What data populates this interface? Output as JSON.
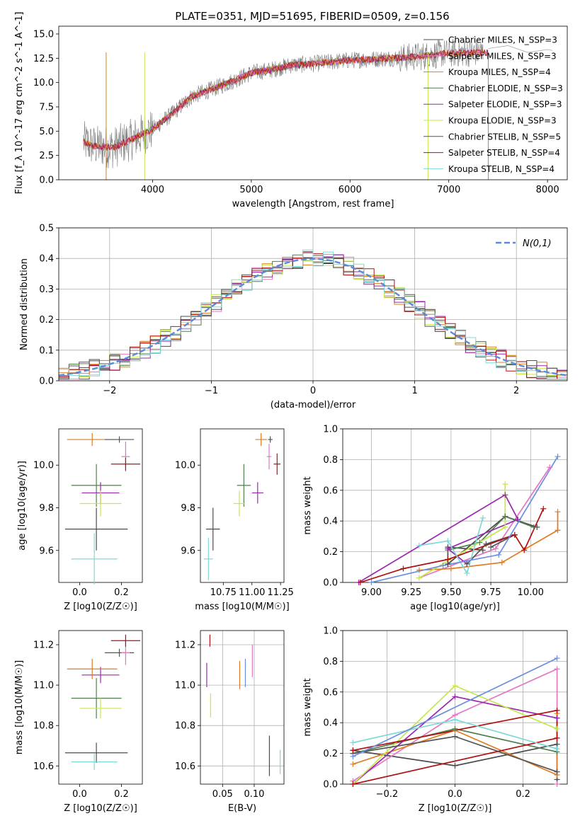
{
  "figure_title": "PLATE=0351, MJD=51695, FIBERID=0509, z=0.156",
  "colors": {
    "Chabrier MILES": "#4b4b4b",
    "Salpeter MILES": "#e377c2",
    "Kroupa MILES": "#e07b1f",
    "Chabrier ELODIE": "#4f7f4f",
    "Salpeter ELODIE": "#9b27b0",
    "Kroupa ELODIE": "#c5e84a",
    "Chabrier STELIB": "#555555",
    "Salpeter STELIB": "#b01010",
    "Kroupa STELIB": "#7fd8d8",
    "normal": "#5a8ad8",
    "blue": "#6a8ee0"
  },
  "chart_data": [
    {
      "id": "spectrum",
      "type": "line",
      "title": "PLATE=0351, MJD=51695, FIBERID=0509, z=0.156",
      "xlabel": "wavelength [Angstrom, rest frame]",
      "ylabel": "Flux [f_λ 10^-17 erg cm^-2 s^-1 A^-1]",
      "xlim": [
        3050,
        8200
      ],
      "ylim": [
        0,
        15.8
      ],
      "xticks": [
        4000,
        5000,
        6000,
        7000,
        8000
      ],
      "yticks": [
        0.0,
        2.5,
        5.0,
        7.5,
        10.0,
        12.5,
        15.0
      ],
      "grid": false,
      "legend_position": "top-right",
      "legend": [
        {
          "label": "Chabrier MILES, N_SSP=3",
          "color_key": "Chabrier MILES"
        },
        {
          "label": "Salpeter MILES, N_SSP=3",
          "color_key": "Salpeter MILES"
        },
        {
          "label": "Kroupa MILES, N_SSP=4",
          "color_key": "Kroupa MILES"
        },
        {
          "label": "Chabrier ELODIE, N_SSP=3",
          "color_key": "Chabrier ELODIE"
        },
        {
          "label": "Salpeter ELODIE, N_SSP=3",
          "color_key": "Salpeter ELODIE"
        },
        {
          "label": "Kroupa ELODIE, N_SSP=3",
          "color_key": "Kroupa ELODIE"
        },
        {
          "label": "Chabrier STELIB, N_SSP=5",
          "color_key": "Chabrier STELIB"
        },
        {
          "label": "Salpeter STELIB, N_SSP=4",
          "color_key": "Salpeter STELIB"
        },
        {
          "label": "Kroupa STELIB, N_SSP=4",
          "color_key": "Kroupa STELIB"
        }
      ],
      "continuum": [
        [
          3300,
          3.9
        ],
        [
          3400,
          3.5
        ],
        [
          3600,
          3.3
        ],
        [
          3800,
          4.2
        ],
        [
          4000,
          5.2
        ],
        [
          4200,
          6.8
        ],
        [
          4400,
          8.6
        ],
        [
          4600,
          9.3
        ],
        [
          4800,
          10.1
        ],
        [
          5000,
          11.0
        ],
        [
          5200,
          11.3
        ],
        [
          5400,
          11.8
        ],
        [
          5600,
          11.9
        ],
        [
          5800,
          12.1
        ],
        [
          6000,
          12.3
        ],
        [
          6200,
          12.4
        ],
        [
          6400,
          12.5
        ],
        [
          6600,
          12.6
        ],
        [
          6800,
          12.8
        ],
        [
          6950,
          13.0
        ],
        [
          7300,
          13.1
        ]
      ],
      "model_ends": {
        "MILES": 7400,
        "ELODIE": 6800,
        "STELIB": 7400
      },
      "red_extension": [
        [
          7400,
          13.5
        ],
        [
          7600,
          13.8
        ],
        [
          7800,
          13.1
        ],
        [
          8000,
          13.4
        ],
        [
          8050,
          13.3
        ]
      ]
    },
    {
      "id": "residual_hist",
      "type": "line",
      "title": "",
      "xlabel": "(data-model)/error",
      "ylabel": "Normed distribution",
      "xlim": [
        -2.5,
        2.5
      ],
      "ylim": [
        0,
        0.5
      ],
      "xticks": [
        -2,
        -1,
        0,
        1,
        2
      ],
      "yticks": [
        0.0,
        0.1,
        0.2,
        0.3,
        0.4,
        0.5
      ],
      "grid": true,
      "legend_position": "top-right",
      "legend": [
        {
          "label": "N(0,1)",
          "style": "dashed",
          "color_key": "normal"
        }
      ],
      "bin_edges_start": -2.5,
      "bin_width": 0.1,
      "curve": "standard normal density, sigma = 1"
    },
    {
      "id": "age_vs_Z",
      "type": "scatter",
      "xlabel": "Z [log10(Z/Z☉)]",
      "ylabel": "age [log10(age/yr)]",
      "xlim": [
        -0.1,
        0.3
      ],
      "ylim": [
        9.45,
        10.17
      ],
      "xticks": [
        0.0,
        0.2
      ],
      "yticks": [
        9.6,
        9.8,
        10.0
      ],
      "grid": false,
      "points": [
        {
          "model": "Chabrier MILES",
          "x": 0.08,
          "xerr": 0.15,
          "y": 9.7,
          "yerr": 0.1
        },
        {
          "model": "Kroupa STELIB",
          "x": 0.07,
          "xerr": 0.11,
          "y": 9.56,
          "yerr": 0.12
        },
        {
          "model": "Chabrier ELODIE",
          "x": 0.08,
          "xerr": 0.12,
          "y": 9.905,
          "yerr": 0.1
        },
        {
          "model": "Salpeter ELODIE",
          "x": 0.1,
          "xerr": 0.09,
          "y": 9.87,
          "yerr": 0.05
        },
        {
          "model": "Kroupa ELODIE",
          "x": 0.1,
          "xerr": 0.1,
          "y": 9.82,
          "yerr": 0.06
        },
        {
          "model": "Kroupa MILES",
          "x": 0.06,
          "xerr": 0.12,
          "y": 10.12,
          "yerr": 0.03
        },
        {
          "model": "Chabrier STELIB",
          "x": 0.19,
          "xerr": 0.07,
          "y": 10.12,
          "yerr": 0.015
        },
        {
          "model": "Salpeter MILES",
          "x": 0.22,
          "xerr": 0.02,
          "y": 10.04,
          "yerr": 0.07
        },
        {
          "model": "Salpeter STELIB",
          "x": 0.22,
          "xerr": 0.07,
          "y": 10.005,
          "yerr": 0.03
        }
      ]
    },
    {
      "id": "age_vs_mass",
      "type": "scatter",
      "xlabel": "mass [log10(M/M☉)]",
      "ylabel": "",
      "xlim": [
        10.55,
        11.28
      ],
      "ylim": [
        9.45,
        10.17
      ],
      "xticks": [
        10.75,
        11.0,
        11.25
      ],
      "yticks": [
        9.6,
        9.8,
        10.0
      ],
      "grid": false,
      "points": [
        {
          "model": "Chabrier MILES",
          "x": 10.66,
          "xerr": 0.06,
          "y": 9.7,
          "yerr": 0.1
        },
        {
          "model": "Kroupa STELIB",
          "x": 10.62,
          "xerr": 0.04,
          "y": 9.56,
          "yerr": 0.1
        },
        {
          "model": "Chabrier ELODIE",
          "x": 10.93,
          "xerr": 0.06,
          "y": 9.905,
          "yerr": 0.1
        },
        {
          "model": "Kroupa ELODIE",
          "x": 10.89,
          "xerr": 0.05,
          "y": 9.82,
          "yerr": 0.06
        },
        {
          "model": "Salpeter ELODIE",
          "x": 11.05,
          "xerr": 0.05,
          "y": 9.87,
          "yerr": 0.05
        },
        {
          "model": "Kroupa MILES",
          "x": 11.08,
          "xerr": 0.05,
          "y": 10.12,
          "yerr": 0.03
        },
        {
          "model": "Chabrier STELIB",
          "x": 11.16,
          "xerr": 0.02,
          "y": 10.12,
          "yerr": 0.015
        },
        {
          "model": "Salpeter MILES",
          "x": 11.15,
          "xerr": 0.02,
          "y": 10.04,
          "yerr": 0.06
        },
        {
          "model": "Salpeter STELIB",
          "x": 11.22,
          "xerr": 0.03,
          "y": 10.005,
          "yerr": 0.05
        }
      ]
    },
    {
      "id": "mass_weight_vs_age",
      "type": "line",
      "xlabel": "age [log10(age/yr)]",
      "ylabel": "mass weight",
      "xlim": [
        8.82,
        10.23
      ],
      "ylim": [
        0,
        1
      ],
      "xticks": [
        9.0,
        9.25,
        9.5,
        9.75,
        10.0
      ],
      "yticks": [
        0.0,
        0.2,
        0.4,
        0.6,
        0.8,
        1.0
      ],
      "grid": true,
      "series": [
        {
          "model": "Chabrier MILES",
          "points": [
            [
              9.7,
              0.21
            ],
            [
              9.48,
              0.23
            ],
            [
              9.48,
              0.12
            ],
            [
              9.84,
              0.43
            ],
            [
              10.04,
              0.36
            ]
          ]
        },
        {
          "model": "Salpeter MILES",
          "points": [
            [
              9.3,
              0.03
            ],
            [
              9.78,
              0.22
            ],
            [
              10.12,
              0.75
            ]
          ]
        },
        {
          "model": "Kroupa MILES",
          "points": [
            [
              9.3,
              0.08
            ],
            [
              9.5,
              0.09
            ],
            [
              9.82,
              0.13
            ],
            [
              10.17,
              0.34
            ],
            [
              10.17,
              0.46
            ]
          ]
        },
        {
          "model": "Chabrier ELODIE",
          "points": [
            [
              9.48,
              0.21
            ],
            [
              9.68,
              0.26
            ],
            [
              9.84,
              0.43
            ],
            [
              10.02,
              0.36
            ]
          ]
        },
        {
          "model": "Salpeter ELODIE",
          "points": [
            [
              8.92,
              0.0
            ],
            [
              9.84,
              0.57
            ],
            [
              9.92,
              0.41
            ],
            [
              9.48,
              0.22
            ],
            [
              9.6,
              0.12
            ]
          ]
        },
        {
          "model": "Kroupa ELODIE",
          "points": [
            [
              9.3,
              0.03
            ],
            [
              9.84,
              0.36
            ],
            [
              9.84,
              0.64
            ]
          ]
        },
        {
          "model": "Chabrier STELIB",
          "points": [
            [
              9.6,
              0.12
            ],
            [
              9.72,
              0.25
            ],
            [
              9.9,
              0.31
            ],
            [
              9.75,
              0.23
            ]
          ]
        },
        {
          "model": "Salpeter STELIB",
          "points": [
            [
              8.93,
              0.0
            ],
            [
              9.2,
              0.09
            ],
            [
              9.48,
              0.15
            ],
            [
              9.9,
              0.31
            ],
            [
              9.96,
              0.21
            ],
            [
              10.08,
              0.48
            ]
          ]
        },
        {
          "model": "Kroupa STELIB",
          "points": [
            [
              9.3,
              0.24
            ],
            [
              9.48,
              0.27
            ],
            [
              9.6,
              0.06
            ],
            [
              9.7,
              0.42
            ]
          ]
        },
        {
          "model": "blue",
          "points": [
            [
              9.0,
              0.0
            ],
            [
              9.45,
              0.11
            ],
            [
              9.8,
              0.18
            ],
            [
              10.17,
              0.82
            ]
          ]
        }
      ]
    },
    {
      "id": "mass_vs_Z",
      "type": "scatter",
      "xlabel": "Z [log10(Z/Z☉)]",
      "ylabel": "mass [log10(M/M☉)]",
      "xlim": [
        -0.1,
        0.3
      ],
      "ylim": [
        10.51,
        11.27
      ],
      "xticks": [
        0.0,
        0.2
      ],
      "yticks": [
        10.6,
        10.8,
        11.0,
        11.2
      ],
      "grid": false,
      "points": [
        {
          "model": "Chabrier MILES",
          "x": 0.08,
          "xerr": 0.15,
          "y": 10.665,
          "yerr": 0.05
        },
        {
          "model": "Kroupa STELIB",
          "x": 0.07,
          "xerr": 0.11,
          "y": 10.62,
          "yerr": 0.04
        },
        {
          "model": "Chabrier ELODIE",
          "x": 0.08,
          "xerr": 0.12,
          "y": 10.935,
          "yerr": 0.1
        },
        {
          "model": "Kroupa ELODIE",
          "x": 0.1,
          "xerr": 0.1,
          "y": 10.885,
          "yerr": 0.05
        },
        {
          "model": "Salpeter ELODIE",
          "x": 0.1,
          "xerr": 0.09,
          "y": 11.05,
          "yerr": 0.04
        },
        {
          "model": "Kroupa MILES",
          "x": 0.06,
          "xerr": 0.12,
          "y": 11.08,
          "yerr": 0.05
        },
        {
          "model": "Chabrier STELIB",
          "x": 0.19,
          "xerr": 0.07,
          "y": 11.16,
          "yerr": 0.02
        },
        {
          "model": "Salpeter MILES",
          "x": 0.22,
          "xerr": 0.02,
          "y": 11.16,
          "yerr": 0.06
        },
        {
          "model": "Salpeter STELIB",
          "x": 0.22,
          "xerr": 0.07,
          "y": 11.22,
          "yerr": 0.03
        }
      ]
    },
    {
      "id": "mass_vs_ebv",
      "type": "scatter",
      "xlabel": "E(B-V)",
      "ylabel": "",
      "xlim": [
        0.015,
        0.147
      ],
      "ylim": [
        10.51,
        11.27
      ],
      "xticks": [
        0.05,
        0.1
      ],
      "yticks": [
        10.6,
        10.8,
        11.0,
        11.2
      ],
      "grid": true,
      "points": [
        {
          "model": "Salpeter STELIB",
          "x": 0.03,
          "y": 11.22,
          "yerr": 0.03
        },
        {
          "model": "Salpeter ELODIE",
          "x": 0.025,
          "y": 11.05,
          "yerr": 0.06
        },
        {
          "model": "Kroupa ELODIE",
          "x": 0.031,
          "y": 10.9,
          "yerr": 0.06
        },
        {
          "model": "Kroupa MILES",
          "x": 0.077,
          "y": 11.05,
          "yerr": 0.07
        },
        {
          "model": "blue",
          "x": 0.086,
          "y": 11.06,
          "yerr": 0.07
        },
        {
          "model": "Salpeter MILES",
          "x": 0.097,
          "y": 11.12,
          "yerr": 0.08
        },
        {
          "model": "Chabrier MILES",
          "x": 0.124,
          "y": 10.65,
          "yerr": 0.1
        },
        {
          "model": "Kroupa STELIB",
          "x": 0.141,
          "y": 10.62,
          "yerr": 0.06
        }
      ]
    },
    {
      "id": "mass_weight_vs_Z",
      "type": "line",
      "xlabel": "Z [log10(Z/Z☉)]",
      "ylabel": "mass weight",
      "xlim": [
        -0.33,
        0.33
      ],
      "ylim": [
        0,
        1
      ],
      "xticks": [
        -0.2,
        0.0,
        0.2
      ],
      "yticks": [
        0.0,
        0.2,
        0.4,
        0.6,
        0.8,
        1.0
      ],
      "grid": true,
      "series": [
        {
          "model": "Chabrier MILES",
          "points": [
            [
              -0.3,
              0.22
            ],
            [
              0.0,
              0.12
            ],
            [
              0.3,
              0.26
            ],
            [
              0.3,
              0.03
            ]
          ]
        },
        {
          "model": "Salpeter MILES",
          "points": [
            [
              -0.3,
              0.02
            ],
            [
              0.0,
              0.45
            ],
            [
              0.3,
              0.75
            ],
            [
              0.3,
              0.0
            ]
          ]
        },
        {
          "model": "Kroupa MILES",
          "points": [
            [
              -0.3,
              0.13
            ],
            [
              0.0,
              0.35
            ],
            [
              0.3,
              0.06
            ],
            [
              0.3,
              0.46
            ]
          ]
        },
        {
          "model": "Chabrier ELODIE",
          "points": [
            [
              -0.3,
              0.2
            ],
            [
              0.0,
              0.36
            ],
            [
              0.3,
              0.21
            ],
            [
              0.3,
              0.43
            ]
          ]
        },
        {
          "model": "Salpeter ELODIE",
          "points": [
            [
              -0.3,
              0.0
            ],
            [
              0.0,
              0.57
            ],
            [
              0.3,
              0.43
            ]
          ]
        },
        {
          "model": "Kroupa ELODIE",
          "points": [
            [
              -0.3,
              0.0
            ],
            [
              0.0,
              0.64
            ],
            [
              0.3,
              0.36
            ]
          ]
        },
        {
          "model": "Chabrier STELIB",
          "points": [
            [
              -0.3,
              0.2
            ],
            [
              0.0,
              0.31
            ],
            [
              0.3,
              0.08
            ]
          ]
        },
        {
          "model": "Salpeter STELIB",
          "points": [
            [
              -0.3,
              0.0
            ],
            [
              0.3,
              0.3
            ],
            [
              0.3,
              0.48
            ],
            [
              -0.3,
              0.22
            ]
          ]
        },
        {
          "model": "Kroupa STELIB",
          "points": [
            [
              -0.3,
              0.27
            ],
            [
              0.0,
              0.42
            ],
            [
              0.3,
              0.23
            ]
          ]
        },
        {
          "model": "blue",
          "points": [
            [
              -0.3,
              0.18
            ],
            [
              0.3,
              0.82
            ]
          ]
        }
      ]
    }
  ]
}
